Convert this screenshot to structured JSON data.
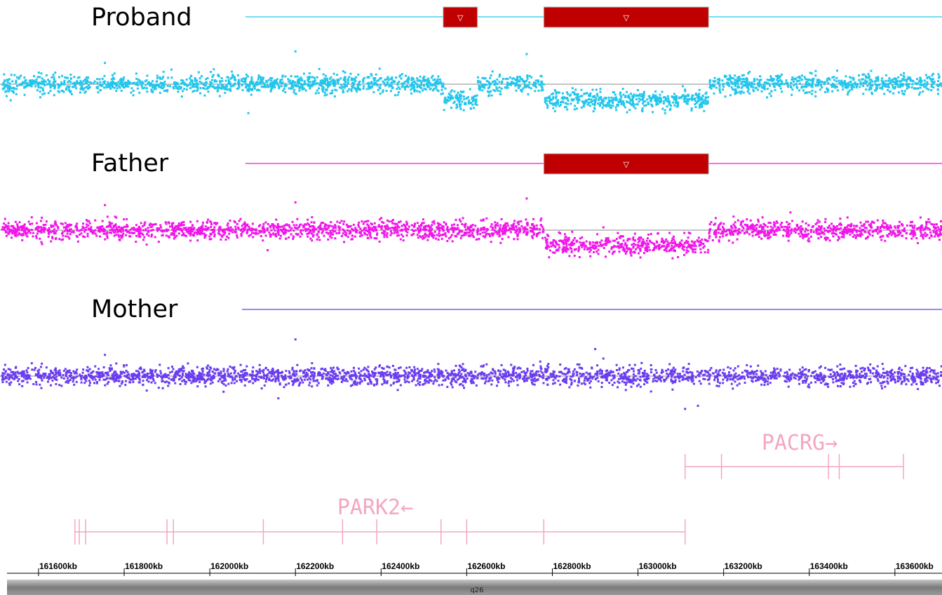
{
  "chart_data": {
    "type": "scatter",
    "x_unit": "kb",
    "xlim": [
      161510,
      163710
    ],
    "tracks": [
      {
        "name": "Proband",
        "color": "#22c6ec",
        "baseline": 0,
        "noise_sd": 0.12,
        "outliers": [
          {
            "x": 162200,
            "y": 0.85
          },
          {
            "x": 162740,
            "y": 0.78
          },
          {
            "x": 161755,
            "y": 0.55
          },
          {
            "x": 162090,
            "y": -0.75
          }
        ],
        "cnv_calls": [
          {
            "start": 162545,
            "end": 162625,
            "state": "loss",
            "marker": "▽",
            "mean_log2": -0.42
          },
          {
            "start": 162780,
            "end": 163165,
            "state": "loss",
            "marker": "▽",
            "mean_log2": -0.45
          }
        ]
      },
      {
        "name": "Father",
        "color": "#f016e8",
        "baseline": 0,
        "noise_sd": 0.12,
        "outliers": [
          {
            "x": 162200,
            "y": 0.72
          },
          {
            "x": 162740,
            "y": 0.82
          },
          {
            "x": 161755,
            "y": 0.65
          },
          {
            "x": 162135,
            "y": -0.52
          }
        ],
        "cnv_calls": [
          {
            "start": 162780,
            "end": 163165,
            "state": "loss",
            "marker": "▽",
            "mean_log2": -0.42
          }
        ]
      },
      {
        "name": "Mother",
        "color": "#6a3cf0",
        "baseline": 0,
        "noise_sd": 0.12,
        "outliers": [
          {
            "x": 162200,
            "y": 0.95
          },
          {
            "x": 162900,
            "y": 0.7
          },
          {
            "x": 161755,
            "y": 0.55
          },
          {
            "x": 163110,
            "y": -0.85
          },
          {
            "x": 163140,
            "y": -0.77
          }
        ],
        "cnv_calls": []
      }
    ],
    "genes": [
      {
        "name": "PACRG",
        "direction": "→",
        "start": 163110,
        "end": 163620,
        "exons": [
          163110,
          163195,
          163445,
          163470,
          163620
        ]
      },
      {
        "name": "PARK2",
        "direction": "←",
        "start": 161685,
        "end": 163110,
        "exons": [
          161685,
          161695,
          161710,
          161900,
          161915,
          162125,
          162310,
          162390,
          162540,
          162600,
          162780,
          163110
        ]
      }
    ],
    "x_ticks": [
      161600,
      161800,
      162000,
      162200,
      162400,
      162600,
      162800,
      163000,
      163200,
      163400,
      163600
    ],
    "x_tick_labels": [
      "161600kb",
      "161800kb",
      "162000kb",
      "162200kb",
      "162400kb",
      "162600kb",
      "162800kb",
      "163000kb",
      "163200kb",
      "163400kb",
      "163600kb"
    ],
    "cytoband": "q26",
    "gene_color": "#f4a6c2",
    "cnv_color": "#c00000"
  }
}
